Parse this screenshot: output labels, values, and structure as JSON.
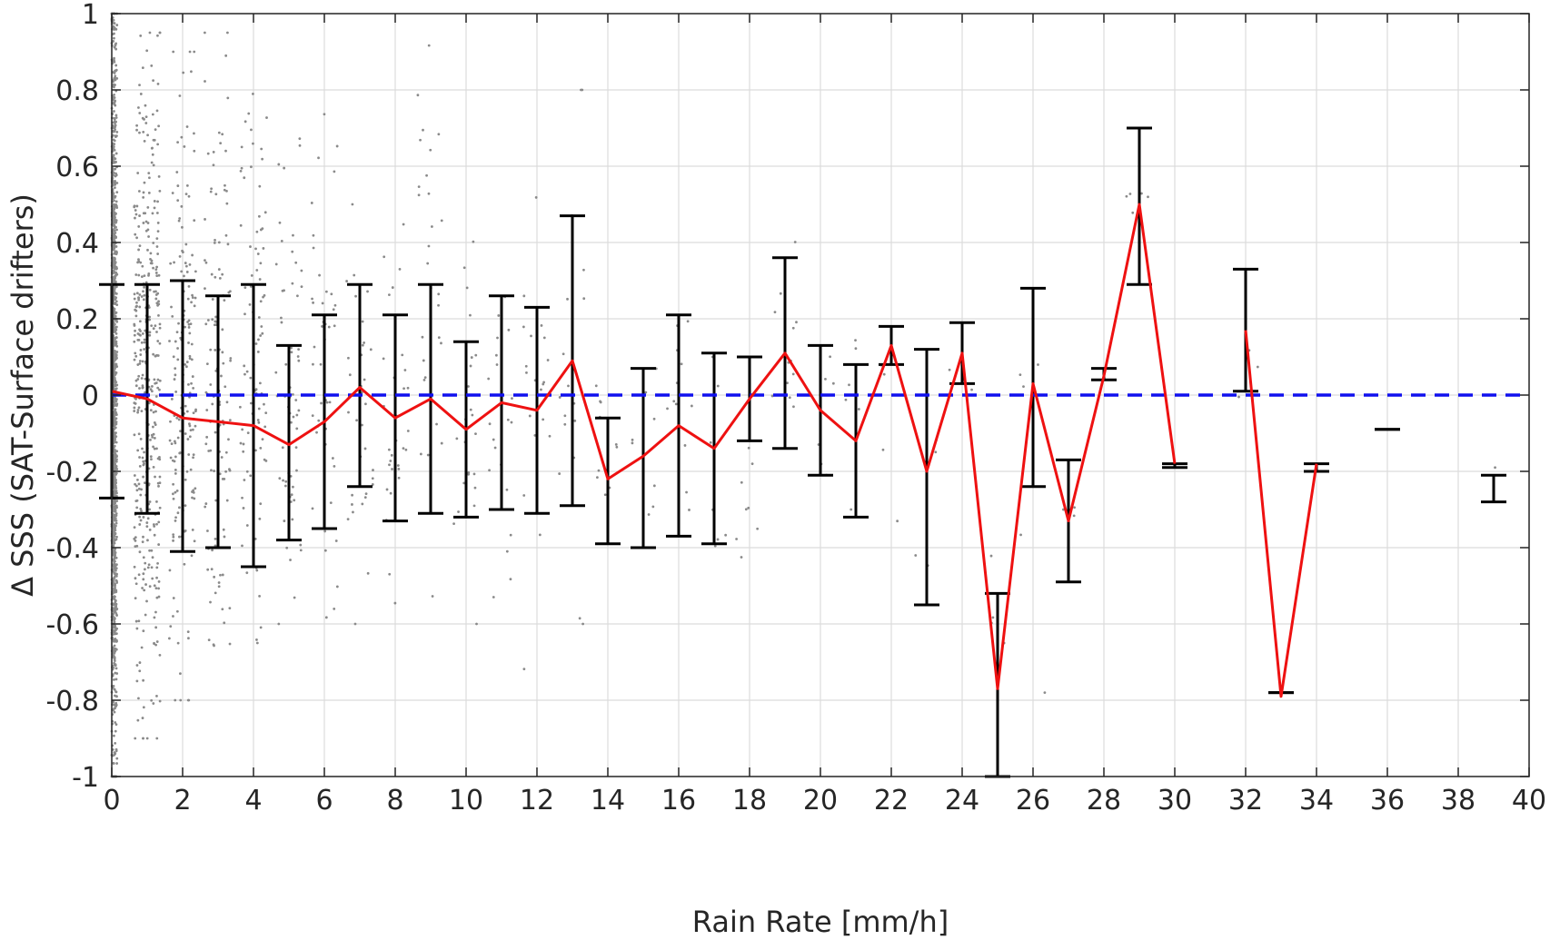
{
  "chart_data": {
    "type": "line",
    "title": "",
    "xlabel": "Rain Rate [mm/h]",
    "ylabel": "Δ SSS (SAT-Surface drifters)",
    "xlim": [
      0,
      40
    ],
    "ylim": [
      -1,
      1
    ],
    "x_ticks": [
      "0",
      "2",
      "4",
      "6",
      "8",
      "10",
      "12",
      "14",
      "16",
      "18",
      "20",
      "22",
      "24",
      "26",
      "28",
      "30",
      "32",
      "34",
      "36",
      "38",
      "40"
    ],
    "y_ticks": [
      "-1",
      "-0.8",
      "-0.6",
      "-0.4",
      "-0.2",
      "0",
      "0.2",
      "0.4",
      "0.6",
      "0.8",
      "1"
    ],
    "grid": true,
    "reference_line": {
      "y": 0,
      "style": "dashed",
      "color": "#1010ee"
    },
    "colors": {
      "mean_line": "#ee1111",
      "error_bars": "#000000",
      "scatter": "#8a8a8a",
      "reference": "#1010ee"
    },
    "mean_series": {
      "x": [
        0,
        1,
        2,
        3,
        4,
        5,
        6,
        7,
        8,
        9,
        10,
        11,
        12,
        13,
        14,
        15,
        16,
        17,
        18,
        19,
        20,
        21,
        22,
        23,
        24,
        25,
        26,
        27,
        28,
        29,
        30
      ],
      "y": [
        0.01,
        -0.01,
        -0.06,
        -0.07,
        -0.08,
        -0.13,
        -0.07,
        0.02,
        -0.06,
        -0.01,
        -0.09,
        -0.02,
        -0.04,
        0.09,
        -0.22,
        -0.16,
        -0.08,
        -0.14,
        -0.01,
        0.11,
        -0.04,
        -0.12,
        0.13,
        -0.2,
        0.11,
        -0.77,
        0.03,
        -0.33,
        0.05,
        0.5,
        -0.18
      ]
    },
    "mean_series_2": {
      "x": [
        32,
        33,
        34
      ],
      "y": [
        0.17,
        -0.79,
        -0.18
      ]
    },
    "error_bars": [
      {
        "x": 0,
        "low": -0.27,
        "high": 0.29
      },
      {
        "x": 1,
        "low": -0.31,
        "high": 0.29
      },
      {
        "x": 2,
        "low": -0.41,
        "high": 0.3
      },
      {
        "x": 3,
        "low": -0.4,
        "high": 0.26
      },
      {
        "x": 4,
        "low": -0.45,
        "high": 0.29
      },
      {
        "x": 5,
        "low": -0.38,
        "high": 0.13
      },
      {
        "x": 6,
        "low": -0.35,
        "high": 0.21
      },
      {
        "x": 7,
        "low": -0.24,
        "high": 0.29
      },
      {
        "x": 8,
        "low": -0.33,
        "high": 0.21
      },
      {
        "x": 9,
        "low": -0.31,
        "high": 0.29
      },
      {
        "x": 10,
        "low": -0.32,
        "high": 0.14
      },
      {
        "x": 11,
        "low": -0.3,
        "high": 0.26
      },
      {
        "x": 12,
        "low": -0.31,
        "high": 0.23
      },
      {
        "x": 13,
        "low": -0.29,
        "high": 0.47
      },
      {
        "x": 14,
        "low": -0.39,
        "high": -0.06
      },
      {
        "x": 15,
        "low": -0.4,
        "high": 0.07
      },
      {
        "x": 16,
        "low": -0.37,
        "high": 0.21
      },
      {
        "x": 17,
        "low": -0.39,
        "high": 0.11
      },
      {
        "x": 18,
        "low": -0.12,
        "high": 0.1
      },
      {
        "x": 19,
        "low": -0.14,
        "high": 0.36
      },
      {
        "x": 20,
        "low": -0.21,
        "high": 0.13
      },
      {
        "x": 21,
        "low": -0.32,
        "high": 0.08
      },
      {
        "x": 22,
        "low": 0.08,
        "high": 0.18
      },
      {
        "x": 23,
        "low": -0.55,
        "high": 0.12
      },
      {
        "x": 24,
        "low": 0.03,
        "high": 0.19
      },
      {
        "x": 25,
        "low": -1.0,
        "high": -0.52
      },
      {
        "x": 26,
        "low": -0.24,
        "high": 0.28
      },
      {
        "x": 27,
        "low": -0.49,
        "high": -0.17
      },
      {
        "x": 28,
        "low": 0.04,
        "high": 0.07
      },
      {
        "x": 29,
        "low": 0.29,
        "high": 0.7
      },
      {
        "x": 30,
        "low": -0.19,
        "high": -0.18
      },
      {
        "x": 32,
        "low": 0.01,
        "high": 0.33
      },
      {
        "x": 33,
        "low": -0.78,
        "high": -0.78
      },
      {
        "x": 34,
        "low": -0.2,
        "high": -0.18
      },
      {
        "x": 36,
        "low": -0.09,
        "high": -0.09
      },
      {
        "x": 39,
        "low": -0.28,
        "high": -0.21
      }
    ],
    "scatter_description_bins": [
      {
        "x": 0,
        "y_min": -1.0,
        "y_max": 1.0,
        "count": 1400
      },
      {
        "x": 1,
        "y_min": -0.9,
        "y_max": 0.95,
        "count": 400
      },
      {
        "x": 2,
        "y_min": -0.8,
        "y_max": 0.9,
        "count": 180
      },
      {
        "x": 3,
        "y_min": -0.78,
        "y_max": 0.95,
        "count": 120
      },
      {
        "x": 4,
        "y_min": -0.65,
        "y_max": 0.95,
        "count": 90
      },
      {
        "x": 5,
        "y_min": -0.6,
        "y_max": 0.7,
        "count": 60
      },
      {
        "x": 6,
        "y_min": -0.66,
        "y_max": 0.85,
        "count": 45
      },
      {
        "x": 7,
        "y_min": -0.6,
        "y_max": 0.5,
        "count": 35
      },
      {
        "x": 8,
        "y_min": -0.6,
        "y_max": 0.55,
        "count": 30
      },
      {
        "x": 9,
        "y_min": -0.6,
        "y_max": 0.95,
        "count": 28
      },
      {
        "x": 10,
        "y_min": -0.6,
        "y_max": 0.5,
        "count": 24
      },
      {
        "x": 11,
        "y_min": -0.55,
        "y_max": 0.35,
        "count": 20
      },
      {
        "x": 12,
        "y_min": -0.78,
        "y_max": 0.65,
        "count": 20
      },
      {
        "x": 13,
        "y_min": -0.6,
        "y_max": 0.8,
        "count": 18
      },
      {
        "x": 14,
        "y_min": -0.45,
        "y_max": 0.1,
        "count": 10
      },
      {
        "x": 15,
        "y_min": -0.4,
        "y_max": 0.1,
        "count": 8
      },
      {
        "x": 16,
        "y_min": -0.4,
        "y_max": 0.45,
        "count": 12
      },
      {
        "x": 17,
        "y_min": -0.5,
        "y_max": 0.1,
        "count": 8
      },
      {
        "x": 18,
        "y_min": -0.5,
        "y_max": 0.1,
        "count": 8
      },
      {
        "x": 19,
        "y_min": -0.2,
        "y_max": 0.45,
        "count": 12
      },
      {
        "x": 20,
        "y_min": -0.3,
        "y_max": 0.2,
        "count": 6
      },
      {
        "x": 21,
        "y_min": -0.3,
        "y_max": 0.28,
        "count": 6
      },
      {
        "x": 22,
        "y_min": -0.55,
        "y_max": 0.2,
        "count": 4
      },
      {
        "x": 23,
        "y_min": -0.8,
        "y_max": 0.1,
        "count": 4
      },
      {
        "x": 24,
        "y_min": 0.0,
        "y_max": 0.1,
        "count": 3
      },
      {
        "x": 25,
        "y_min": -0.78,
        "y_max": -0.25,
        "count": 4
      },
      {
        "x": 26,
        "y_min": -0.78,
        "y_max": 0.12,
        "count": 5
      },
      {
        "x": 27,
        "y_min": -0.33,
        "y_max": -0.28,
        "count": 3
      },
      {
        "x": 29,
        "y_min": 0.45,
        "y_max": 0.56,
        "count": 5
      },
      {
        "x": 32,
        "y_min": -0.15,
        "y_max": 0.2,
        "count": 3
      },
      {
        "x": 39,
        "y_min": -0.2,
        "y_max": -0.18,
        "count": 1
      }
    ]
  }
}
